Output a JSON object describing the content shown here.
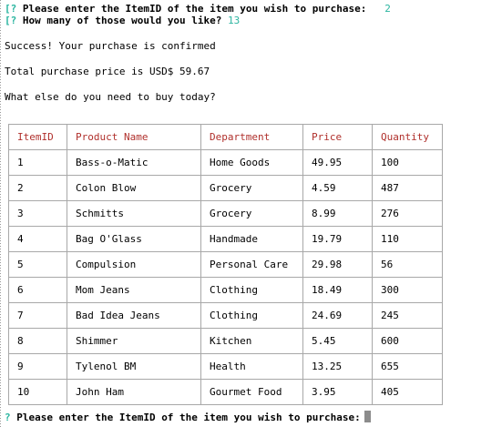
{
  "prompts": {
    "first": {
      "bracket": "[",
      "mark": "?",
      "text": " Please enter the ItemID of the item you wish to purchase:",
      "answer": "2"
    },
    "second": {
      "bracket": "[",
      "mark": "?",
      "text": " How many of those would you like?",
      "answer": "13"
    },
    "last": {
      "mark": "?",
      "text": " Please enter the ItemID of the item you wish to purchase:"
    }
  },
  "messages": {
    "success": "Success! Your purchase is confirmed",
    "total": "Total purchase price is USD$ 59.67",
    "question": "What else do you need to buy today?"
  },
  "table": {
    "headers": [
      "ItemID",
      "Product Name",
      "Department",
      "Price",
      "Quantity"
    ],
    "rows": [
      [
        "1",
        "Bass-o-Matic",
        "Home Goods",
        "49.95",
        "100"
      ],
      [
        "2",
        "Colon Blow",
        "Grocery",
        "4.59",
        "487"
      ],
      [
        "3",
        "Schmitts",
        "Grocery",
        "8.99",
        "276"
      ],
      [
        "4",
        "Bag O'Glass",
        "Handmade",
        "19.79",
        "110"
      ],
      [
        "5",
        "Compulsion",
        "Personal Care",
        "29.98",
        "56"
      ],
      [
        "6",
        "Mom Jeans",
        "Clothing",
        "18.49",
        "300"
      ],
      [
        "7",
        "Bad Idea Jeans",
        "Clothing",
        "24.69",
        "245"
      ],
      [
        "8",
        "Shimmer",
        "Kitchen",
        "5.45",
        "600"
      ],
      [
        "9",
        "Tylenol BM",
        "Health",
        "13.25",
        "655"
      ],
      [
        "10",
        "John Ham",
        "Gourmet Food",
        "3.95",
        "405"
      ]
    ]
  },
  "colors": {
    "prompt_mark": "#2bb5a0",
    "header_text": "#b0302c",
    "grid": "#a8a8a8"
  }
}
